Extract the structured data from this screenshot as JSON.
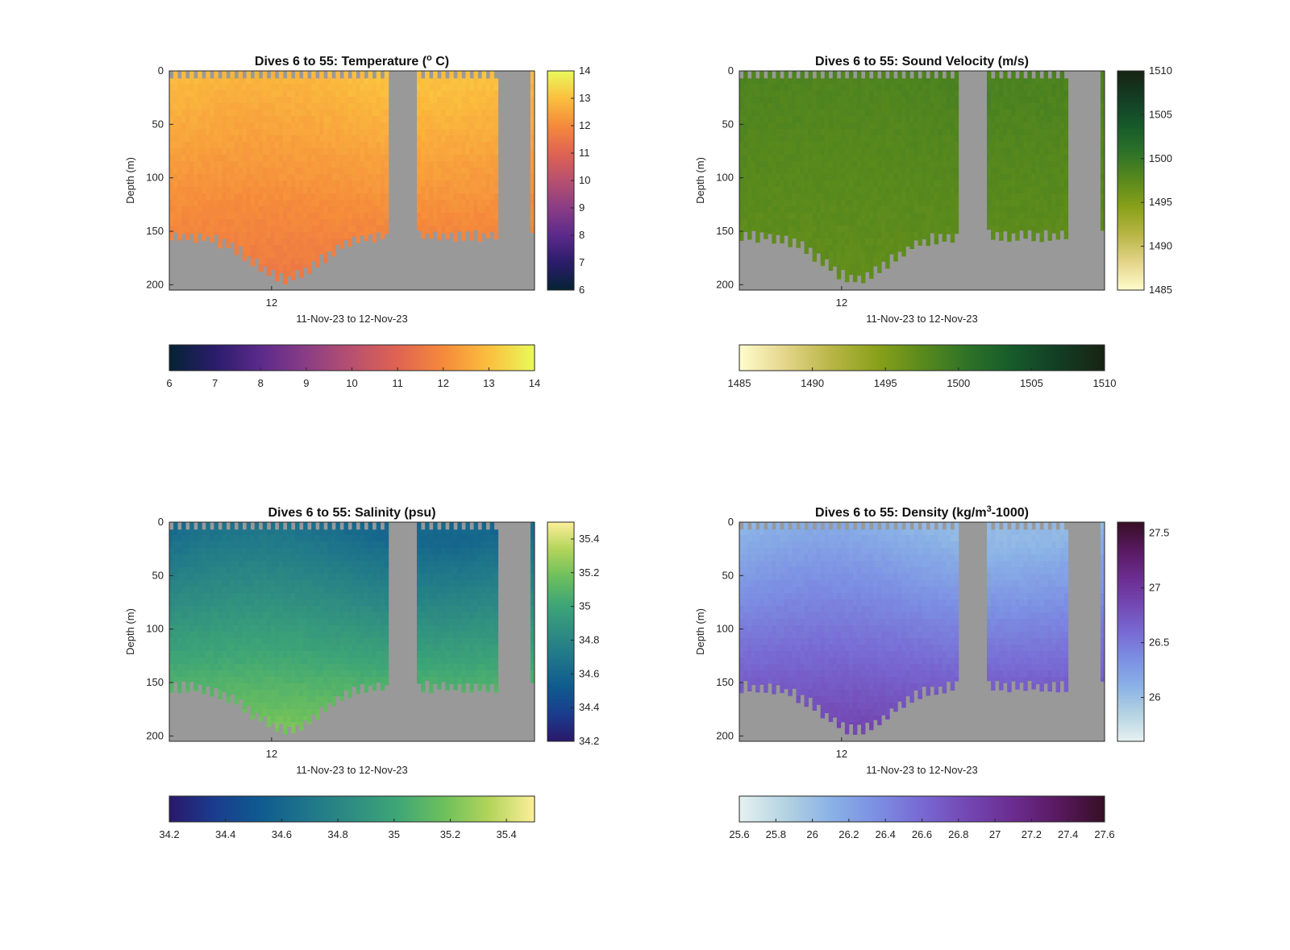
{
  "chart_data": [
    {
      "type": "heatmap",
      "title_prefix": "Dives 6 to 55: Temperature (",
      "title_sup": "o",
      "title_suffix": " C)",
      "ylabel": "Depth (m)",
      "xlabel": "11-Nov-23 to 12-Nov-23",
      "x_ticks": [
        "12"
      ],
      "y_ticks": [
        0,
        50,
        100,
        150,
        200
      ],
      "ylim": [
        0,
        205
      ],
      "colormap": "thermal",
      "clim": [
        6,
        14
      ],
      "cbar_vert_ticks": [
        6,
        7,
        8,
        9,
        10,
        11,
        12,
        13,
        14
      ],
      "cbar_horiz_ticks": [
        6,
        7,
        8,
        9,
        10,
        11,
        12,
        13,
        14
      ],
      "surface_value": 13.0,
      "bottom_value": 11.6,
      "nan_color": "#999999"
    },
    {
      "type": "heatmap",
      "title_prefix": "Dives 6 to 55: Sound Velocity (m/s)",
      "title_sup": "",
      "title_suffix": "",
      "ylabel": "Depth (m)",
      "xlabel": "11-Nov-23 to 12-Nov-23",
      "x_ticks": [
        "12"
      ],
      "y_ticks": [
        0,
        50,
        100,
        150,
        200
      ],
      "ylim": [
        0,
        205
      ],
      "colormap": "speed",
      "clim": [
        1485,
        1510
      ],
      "cbar_vert_ticks": [
        1485,
        1490,
        1495,
        1500,
        1505,
        1510
      ],
      "cbar_horiz_ticks": [
        1485,
        1490,
        1495,
        1500,
        1505,
        1510
      ],
      "surface_value": 1498.5,
      "bottom_value": 1497.0,
      "nan_color": "#999999"
    },
    {
      "type": "heatmap",
      "title_prefix": "Dives 6 to 55: Salinity (psu)",
      "title_sup": "",
      "title_suffix": "",
      "ylabel": "Depth (m)",
      "xlabel": "11-Nov-23 to 12-Nov-23",
      "x_ticks": [
        "12"
      ],
      "y_ticks": [
        0,
        50,
        100,
        150,
        200
      ],
      "ylim": [
        0,
        205
      ],
      "colormap": "haline",
      "clim": [
        34.2,
        35.5
      ],
      "cbar_vert_ticks": [
        34.2,
        34.4,
        34.6,
        34.8,
        35,
        35.2,
        35.4
      ],
      "cbar_horiz_ticks": [
        34.2,
        34.4,
        34.6,
        34.8,
        35,
        35.2,
        35.4
      ],
      "surface_value": 34.6,
      "bottom_value": 35.2,
      "nan_color": "#999999"
    },
    {
      "type": "heatmap",
      "title_prefix": "Dives 6 to 55: Density (kg/m",
      "title_sup": "3",
      "title_suffix": "-1000)",
      "ylabel": "Depth (m)",
      "xlabel": "11-Nov-23 to 12-Nov-23",
      "x_ticks": [
        "12"
      ],
      "y_ticks": [
        0,
        50,
        100,
        150,
        200
      ],
      "ylim": [
        0,
        205
      ],
      "colormap": "dense",
      "clim": [
        25.6,
        27.6
      ],
      "cbar_vert_ticks": [
        26,
        26.5,
        27,
        27.5
      ],
      "cbar_horiz_ticks": [
        25.6,
        25.8,
        26,
        26.2,
        26.4,
        26.6,
        26.8,
        27,
        27.2,
        27.4,
        27.6
      ],
      "surface_value": 26.05,
      "bottom_value": 26.85,
      "nan_color": "#999999"
    }
  ]
}
